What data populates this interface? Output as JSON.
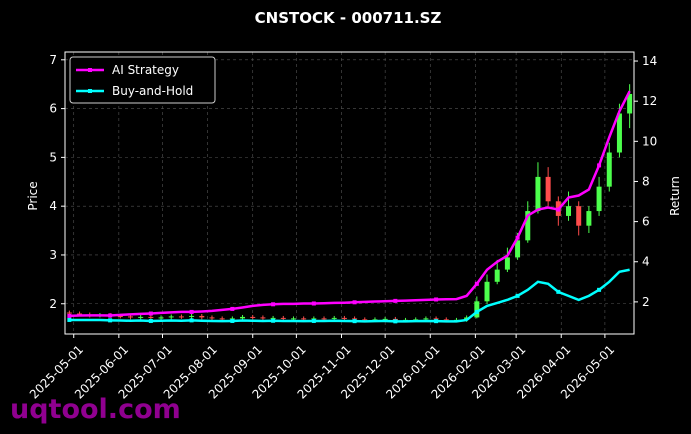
{
  "chart_data": {
    "type": "candlestick",
    "title": "CNSTOCK - 000711.SZ",
    "ylabel": "Price",
    "y2label": "Return",
    "x": [
      "2025-04-28",
      "2025-05-05",
      "2025-05-12",
      "2025-05-19",
      "2025-05-26",
      "2025-06-02",
      "2025-06-09",
      "2025-06-16",
      "2025-06-23",
      "2025-06-30",
      "2025-07-07",
      "2025-07-14",
      "2025-07-21",
      "2025-07-28",
      "2025-08-04",
      "2025-08-11",
      "2025-08-18",
      "2025-08-25",
      "2025-09-01",
      "2025-09-08",
      "2025-09-15",
      "2025-09-22",
      "2025-09-29",
      "2025-10-06",
      "2025-10-13",
      "2025-10-20",
      "2025-10-27",
      "2025-11-03",
      "2025-11-10",
      "2025-11-17",
      "2025-11-24",
      "2025-12-01",
      "2025-12-08",
      "2025-12-15",
      "2025-12-22",
      "2025-12-29",
      "2026-01-05",
      "2026-01-12",
      "2026-01-19",
      "2026-01-26",
      "2026-02-02",
      "2026-02-09",
      "2026-02-16",
      "2026-02-23",
      "2026-03-02",
      "2026-03-09",
      "2026-03-16",
      "2026-03-23",
      "2026-03-30",
      "2026-04-06",
      "2026-04-13",
      "2026-04-20",
      "2026-04-27",
      "2026-05-04",
      "2026-05-11",
      "2026-05-18"
    ],
    "open": [
      1.82,
      1.8,
      1.78,
      1.76,
      1.77,
      1.75,
      1.74,
      1.72,
      1.73,
      1.71,
      1.72,
      1.74,
      1.73,
      1.75,
      1.72,
      1.7,
      1.68,
      1.7,
      1.73,
      1.72,
      1.7,
      1.71,
      1.69,
      1.7,
      1.68,
      1.7,
      1.69,
      1.71,
      1.7,
      1.68,
      1.67,
      1.68,
      1.69,
      1.66,
      1.67,
      1.68,
      1.7,
      1.68,
      1.66,
      1.67,
      1.72,
      2.05,
      2.45,
      2.7,
      2.95,
      3.3,
      3.9,
      4.6,
      4.1,
      3.8,
      4.0,
      3.6,
      3.9,
      4.4,
      5.1,
      5.9
    ],
    "high": [
      1.86,
      1.84,
      1.82,
      1.81,
      1.81,
      1.79,
      1.78,
      1.77,
      1.77,
      1.76,
      1.78,
      1.78,
      1.79,
      1.79,
      1.76,
      1.74,
      1.74,
      1.77,
      1.77,
      1.76,
      1.75,
      1.75,
      1.74,
      1.74,
      1.74,
      1.74,
      1.75,
      1.75,
      1.74,
      1.72,
      1.72,
      1.73,
      1.73,
      1.71,
      1.72,
      1.74,
      1.74,
      1.72,
      1.71,
      1.76,
      2.15,
      2.6,
      2.9,
      3.15,
      3.45,
      4.1,
      4.9,
      4.8,
      4.2,
      4.3,
      4.1,
      4.0,
      4.6,
      5.3,
      6.1,
      6.5
    ],
    "low": [
      1.76,
      1.74,
      1.72,
      1.72,
      1.71,
      1.7,
      1.68,
      1.68,
      1.67,
      1.67,
      1.68,
      1.69,
      1.69,
      1.68,
      1.66,
      1.64,
      1.64,
      1.66,
      1.68,
      1.66,
      1.66,
      1.65,
      1.65,
      1.64,
      1.64,
      1.65,
      1.65,
      1.66,
      1.64,
      1.63,
      1.63,
      1.64,
      1.62,
      1.62,
      1.63,
      1.64,
      1.64,
      1.62,
      1.62,
      1.63,
      1.7,
      2.0,
      2.4,
      2.65,
      2.9,
      3.25,
      3.85,
      4.0,
      3.6,
      3.7,
      3.4,
      3.45,
      3.8,
      4.3,
      5.0,
      5.6
    ],
    "close": [
      1.8,
      1.78,
      1.76,
      1.77,
      1.75,
      1.74,
      1.72,
      1.73,
      1.71,
      1.72,
      1.74,
      1.73,
      1.75,
      1.72,
      1.7,
      1.68,
      1.7,
      1.73,
      1.72,
      1.7,
      1.71,
      1.69,
      1.7,
      1.68,
      1.7,
      1.69,
      1.71,
      1.7,
      1.68,
      1.67,
      1.68,
      1.69,
      1.66,
      1.67,
      1.68,
      1.7,
      1.68,
      1.66,
      1.67,
      1.72,
      2.05,
      2.45,
      2.7,
      2.95,
      3.3,
      3.9,
      4.6,
      4.1,
      3.8,
      4.0,
      3.6,
      3.9,
      4.4,
      5.1,
      5.9,
      6.3
    ],
    "up_color": "#4cff4c",
    "down_color": "#ff4c4c",
    "series": [
      {
        "name": "AI Strategy",
        "color": "#ff00ff",
        "axis": "y2",
        "values": [
          1.3,
          1.32,
          1.33,
          1.33,
          1.32,
          1.35,
          1.38,
          1.4,
          1.42,
          1.45,
          1.48,
          1.5,
          1.5,
          1.52,
          1.55,
          1.6,
          1.65,
          1.72,
          1.8,
          1.85,
          1.88,
          1.9,
          1.9,
          1.92,
          1.92,
          1.93,
          1.95,
          1.96,
          1.98,
          2.0,
          2.02,
          2.03,
          2.05,
          2.06,
          2.08,
          2.1,
          2.12,
          2.13,
          2.14,
          2.3,
          2.9,
          3.6,
          4.0,
          4.3,
          5.2,
          6.3,
          6.6,
          6.7,
          6.6,
          7.2,
          7.3,
          7.6,
          8.8,
          10.2,
          11.5,
          12.5
        ]
      },
      {
        "name": "Buy-and-Hold",
        "color": "#00ffff",
        "axis": "y2",
        "values": [
          1.1,
          1.1,
          1.1,
          1.1,
          1.08,
          1.07,
          1.06,
          1.07,
          1.05,
          1.06,
          1.07,
          1.06,
          1.08,
          1.06,
          1.05,
          1.04,
          1.05,
          1.07,
          1.06,
          1.05,
          1.06,
          1.05,
          1.05,
          1.04,
          1.05,
          1.05,
          1.06,
          1.05,
          1.04,
          1.03,
          1.04,
          1.05,
          1.03,
          1.03,
          1.04,
          1.05,
          1.04,
          1.03,
          1.03,
          1.1,
          1.5,
          1.8,
          1.95,
          2.1,
          2.3,
          2.6,
          3.0,
          2.9,
          2.5,
          2.3,
          2.1,
          2.3,
          2.6,
          3.0,
          3.5,
          3.6
        ]
      }
    ],
    "xlim": [
      "2025-04-25",
      "2026-05-21"
    ],
    "xticks": [
      "2025-05-01",
      "2025-06-01",
      "2025-07-01",
      "2025-08-01",
      "2025-09-01",
      "2025-10-01",
      "2025-11-01",
      "2025-12-01",
      "2026-01-01",
      "2026-02-01",
      "2026-03-01",
      "2026-04-01",
      "2026-05-01"
    ],
    "ylim": [
      1.38,
      7.16
    ],
    "yticks": [
      2,
      3,
      4,
      5,
      6,
      7
    ],
    "y2lim": [
      0.4,
      14.45
    ],
    "y2ticks": [
      2,
      4,
      6,
      8,
      10,
      12,
      14
    ],
    "grid": true,
    "legend": "upper left",
    "watermark": "uqtool.com"
  }
}
